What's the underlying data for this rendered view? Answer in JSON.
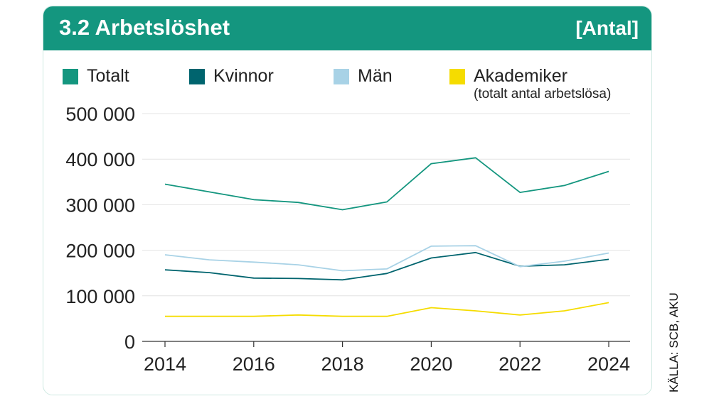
{
  "header": {
    "title": "3.2  Arbetslöshet",
    "unit": "[Antal]"
  },
  "source": "KÄLLA: SCB, AKU",
  "legend": {
    "totalt": "Totalt",
    "kvinnor": "Kvinnor",
    "man": "Män",
    "akademiker": "Akademiker",
    "akademiker_note": "(totalt antal arbetslösa)"
  },
  "colors": {
    "header": "#14967f",
    "totalt": "#14967f",
    "kvinnor": "#00646e",
    "man": "#a8d2e6",
    "akademiker": "#f5dc00"
  },
  "chart_data": {
    "type": "line",
    "x": [
      2014,
      2015,
      2016,
      2017,
      2018,
      2019,
      2020,
      2021,
      2022,
      2023,
      2024
    ],
    "xticks": [
      "2014",
      "2016",
      "2018",
      "2020",
      "2022",
      "2024"
    ],
    "yticks": [
      "0",
      "100 000",
      "200 000",
      "300 000",
      "400 000",
      "500 000"
    ],
    "ylim": [
      0,
      500000
    ],
    "grid": true,
    "legend_position": "top",
    "series": [
      {
        "name": "Totalt",
        "color": "#14967f",
        "values": [
          345000,
          328000,
          311000,
          305000,
          289000,
          306000,
          390000,
          403000,
          327000,
          342000,
          373000
        ]
      },
      {
        "name": "Kvinnor",
        "color": "#00646e",
        "values": [
          157000,
          151000,
          139000,
          138000,
          135000,
          149000,
          183000,
          195000,
          165000,
          168000,
          180000
        ]
      },
      {
        "name": "Män",
        "color": "#a8d2e6",
        "values": [
          190000,
          179000,
          174000,
          168000,
          155000,
          159000,
          209000,
          210000,
          164000,
          176000,
          194000
        ]
      },
      {
        "name": "Akademiker",
        "color": "#f5dc00",
        "values": [
          55000,
          55000,
          55000,
          58000,
          55000,
          55000,
          74000,
          67000,
          58000,
          67000,
          85000
        ]
      }
    ]
  }
}
